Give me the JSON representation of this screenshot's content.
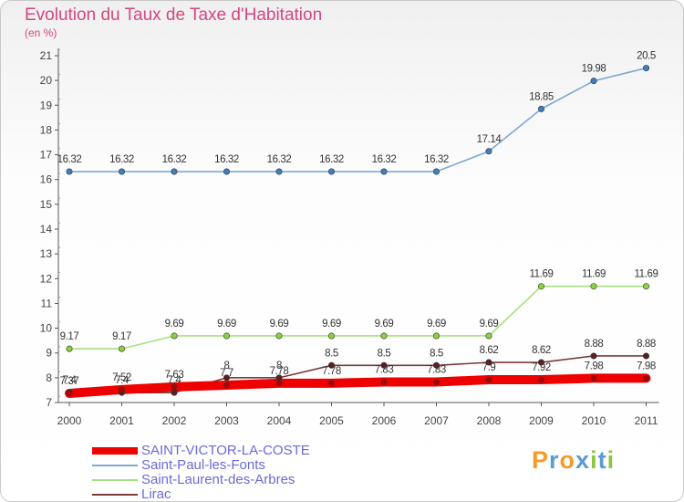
{
  "header": {
    "title": "Evolution du Taux de Taxe d'Habitation",
    "unit": "(en %)"
  },
  "logo": {
    "letters": [
      "P",
      "r",
      "o",
      "x",
      "i",
      "t",
      "i"
    ],
    "colors": [
      "#f39c2a",
      "#5b9bd5",
      "#f39c2a",
      "#5b9bd5",
      "#8cc63f",
      "#5b9bd5",
      "#8cc63f"
    ]
  },
  "chart_data": {
    "type": "line",
    "title": "Evolution du Taux de Taxe d'Habitation",
    "ylabel": "(en %)",
    "xlabel": "",
    "x": [
      "2000",
      "2001",
      "2002",
      "2003",
      "2004",
      "2005",
      "2006",
      "2007",
      "2008",
      "2009",
      "2010",
      "2011"
    ],
    "yticks": [
      7,
      8,
      9,
      10,
      11,
      12,
      13,
      14,
      15,
      16,
      17,
      18,
      19,
      20,
      21
    ],
    "ylim": [
      7,
      21
    ],
    "grid": false,
    "legend_position": "bottom-left",
    "series": [
      {
        "name": "SAINT-VICTOR-LA-COSTE",
        "color": "#ee0000",
        "values": [
          7.37,
          7.52,
          7.63,
          7.7,
          7.78,
          7.78,
          7.83,
          7.83,
          7.92,
          7.92,
          7.98,
          7.98
        ],
        "labels": [
          "7.37",
          "7.52",
          "7.63",
          "7.7",
          "7.78",
          "7.78",
          "7.83",
          "7.83",
          "7.9",
          "7.92",
          "7.98",
          "7.98"
        ]
      },
      {
        "name": "Saint-Paul-les-Fonts",
        "color": "#7fa8d0",
        "values": [
          16.32,
          16.32,
          16.32,
          16.32,
          16.32,
          16.32,
          16.32,
          16.32,
          17.14,
          18.85,
          19.98,
          20.5
        ],
        "labels": [
          "16.32",
          "16.32",
          "16.32",
          "16.32",
          "16.32",
          "16.32",
          "16.32",
          "16.32",
          "17.14",
          "18.85",
          "19.98",
          "20.5"
        ]
      },
      {
        "name": "Saint-Laurent-des-Arbres",
        "color": "#a6e07f",
        "values": [
          9.17,
          9.17,
          9.69,
          9.69,
          9.69,
          9.69,
          9.69,
          9.69,
          9.69,
          11.69,
          11.69,
          11.69
        ],
        "labels": [
          "9.17",
          "9.17",
          "9.69",
          "9.69",
          "9.69",
          "9.69",
          "9.69",
          "9.69",
          "9.69",
          "11.69",
          "11.69",
          "11.69"
        ]
      },
      {
        "name": "Lirac",
        "color": "#7a3b3b",
        "values": [
          7.4,
          7.4,
          7.4,
          8.0,
          8.0,
          8.5,
          8.5,
          8.5,
          8.62,
          8.62,
          8.88,
          8.88
        ],
        "labels": [
          "7.4",
          "7.4",
          "7.4",
          "8",
          "8",
          "8.5",
          "8.5",
          "8.5",
          "8.62",
          "8.62",
          "8.88",
          "8.88"
        ]
      }
    ]
  }
}
